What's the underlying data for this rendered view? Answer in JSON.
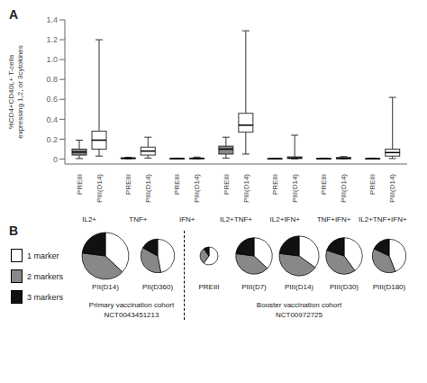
{
  "chart_data": [
    {
      "type": "box",
      "annotations": [
        "A"
      ],
      "ylabel": "%CD4+CD40L+ T-cells\nexpressing 1,2, or 3cytokines",
      "ylim": [
        -0.05,
        1.4
      ],
      "yticks": [
        0,
        0.2,
        0.4,
        0.6,
        0.8,
        {
          "value": 1.0,
          "label": "1.0"
        },
        1.2,
        1.4
      ],
      "categories": [
        "IL2+",
        "TNF+",
        "IFN+",
        "IL2+TNF+",
        "IL2+IFN+",
        "TNF+IFN+",
        "IL2+TNF+IFN+"
      ],
      "series": [
        {
          "name": "PREIII",
          "color": "#888888",
          "values": [
            {
              "q1": 0.04,
              "median": 0.07,
              "q3": 0.1,
              "whislo": 0.005,
              "whishi": 0.19
            },
            {
              "q1": 0.005,
              "median": 0.008,
              "q3": 0.012,
              "whislo": 0.001,
              "whishi": 0.018
            },
            {
              "q1": 0.002,
              "median": 0.004,
              "q3": 0.006,
              "whislo": 0.001,
              "whishi": 0.01
            },
            {
              "q1": 0.05,
              "median": 0.1,
              "q3": 0.13,
              "whislo": 0.01,
              "whishi": 0.22
            },
            {
              "q1": 0.001,
              "median": 0.003,
              "q3": 0.005,
              "whislo": 0.0005,
              "whishi": 0.008
            },
            {
              "q1": 0.001,
              "median": 0.003,
              "q3": 0.006,
              "whislo": 0.0005,
              "whishi": 0.01
            },
            {
              "q1": 0.001,
              "median": 0.003,
              "q3": 0.005,
              "whislo": 0.0005,
              "whishi": 0.01
            }
          ]
        },
        {
          "name": "PIII(D14)",
          "color": "#ffffff",
          "values": [
            {
              "q1": 0.1,
              "median": 0.19,
              "q3": 0.28,
              "whislo": 0.03,
              "whishi": 1.2
            },
            {
              "q1": 0.04,
              "median": 0.08,
              "q3": 0.12,
              "whislo": 0.01,
              "whishi": 0.22
            },
            {
              "q1": 0.004,
              "median": 0.006,
              "q3": 0.01,
              "whislo": 0.001,
              "whishi": 0.02
            },
            {
              "q1": 0.27,
              "median": 0.34,
              "q3": 0.46,
              "whislo": 0.05,
              "whishi": 1.29
            },
            {
              "q1": 0.005,
              "median": 0.012,
              "q3": 0.022,
              "whislo": 0.001,
              "whishi": 0.24
            },
            {
              "q1": 0.003,
              "median": 0.008,
              "q3": 0.015,
              "whislo": 0.001,
              "whishi": 0.025
            },
            {
              "q1": 0.03,
              "median": 0.065,
              "q3": 0.1,
              "whislo": 0.005,
              "whishi": 0.62
            }
          ]
        }
      ]
    },
    {
      "type": "pie",
      "annotations": [
        "B"
      ],
      "series": [
        {
          "name": "1 marker",
          "color": "#ffffff"
        },
        {
          "name": "2 markers",
          "color": "#888888"
        },
        {
          "name": "3 markers",
          "color": "#111111"
        }
      ],
      "cohorts": [
        {
          "labels": [
            "Primary vaccination cohort",
            "NCT0043451213"
          ],
          "pies": [
            {
              "label": "PII(D14)",
              "values": [
                0.37,
                0.4,
                0.23
              ],
              "size": 1.0
            },
            {
              "label": "PII(D360)",
              "values": [
                0.47,
                0.36,
                0.17
              ],
              "size": 0.72
            }
          ]
        },
        {
          "labels": [
            "Booster vaccination cohort",
            "NCT00972725"
          ],
          "pies": [
            {
              "label": "PREIII",
              "values": [
                0.6,
                0.3,
                0.1
              ],
              "size": 0.38
            },
            {
              "label": "PIII(D7)",
              "values": [
                0.37,
                0.4,
                0.23
              ],
              "size": 0.78
            },
            {
              "label": "PIII(D14)",
              "values": [
                0.35,
                0.42,
                0.23
              ],
              "size": 0.85
            },
            {
              "label": "PIII(D30)",
              "values": [
                0.4,
                0.4,
                0.2
              ],
              "size": 0.78
            },
            {
              "label": "PIII(D180)",
              "values": [
                0.44,
                0.38,
                0.18
              ],
              "size": 0.72
            }
          ]
        }
      ]
    }
  ]
}
